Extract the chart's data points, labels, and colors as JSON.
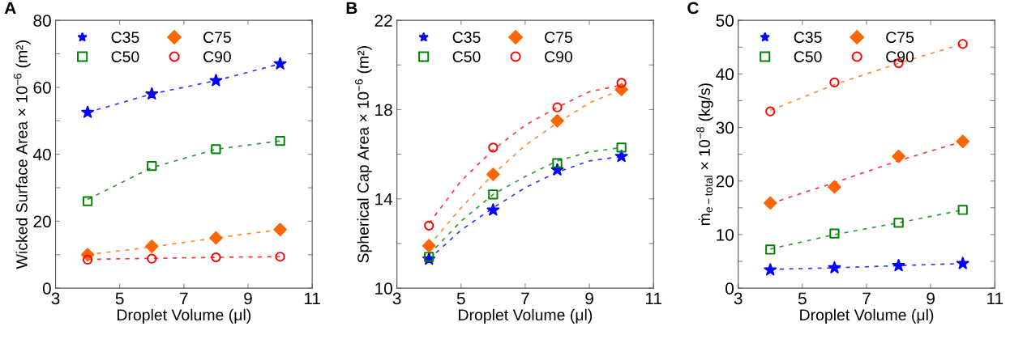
{
  "chart_data": [
    {
      "type": "scatter",
      "annotations": [
        "A"
      ],
      "xlabel": "Droplet Volume (μl)",
      "ylabel": "Wicked Surface Area × 10$^{−6}$ (m²)",
      "x": [
        4,
        6,
        8,
        10
      ],
      "xlim": [
        3,
        11
      ],
      "xticks": [
        3,
        5,
        7,
        9,
        11
      ],
      "ylim": [
        0,
        80
      ],
      "yticks": [
        0,
        {
          "value": 10,
          "label": null
        },
        20,
        {
          "value": 30,
          "label": null
        },
        40,
        {
          "value": 50,
          "label": null
        },
        60,
        {
          "value": 70,
          "label": null
        },
        80
      ],
      "grid": false,
      "legend": "top left",
      "series": [
        {
          "name": "C35",
          "color": "#0000ff",
          "marker": "star",
          "values": [
            52.5,
            58,
            62,
            67
          ]
        },
        {
          "name": "C50",
          "color": "#008000",
          "marker": "square",
          "values": [
            26,
            36.5,
            41.5,
            44
          ]
        },
        {
          "name": "C75",
          "color": "#ff6600",
          "marker": "diamond",
          "values": [
            10,
            12.5,
            15,
            17.5
          ]
        },
        {
          "name": "C90",
          "color": "#ff0000",
          "marker": "circle",
          "values": [
            8.5,
            8.8,
            9.2,
            9.4
          ]
        },
        {
          "type": "line",
          "line_style": "dashed",
          "color": "#3333ff",
          "x": [
            4,
            6,
            8,
            10
          ],
          "values": [
            52.5,
            58,
            62,
            67
          ]
        },
        {
          "type": "line",
          "line_style": "dashed",
          "color": "#339933",
          "x": [
            4,
            6,
            8,
            10
          ],
          "values": [
            26.5,
            36,
            41.5,
            44
          ]
        },
        {
          "type": "line",
          "line_style": "dashed",
          "color": "#ff8833",
          "x": [
            4,
            6,
            8,
            10
          ],
          "values": [
            10,
            12.3,
            15,
            17.5
          ]
        },
        {
          "type": "line",
          "line_style": "dashed",
          "color": "#ff3333",
          "x": [
            4,
            6,
            8,
            10
          ],
          "values": [
            8.6,
            8.9,
            9.2,
            9.4
          ]
        }
      ]
    },
    {
      "type": "scatter",
      "annotations": [
        "B"
      ],
      "xlabel": "Droplet Volume (μl)",
      "ylabel": "Spherical Cap Area × 10$^{−6}$ (m²)",
      "x": [
        4,
        6,
        8,
        10
      ],
      "xlim": [
        3,
        11
      ],
      "xticks": [
        3,
        5,
        7,
        9,
        11
      ],
      "ylim": [
        10,
        22
      ],
      "yticks": [
        10,
        {
          "value": 12,
          "label": null
        },
        14,
        {
          "value": 16,
          "label": null
        },
        18,
        {
          "value": 20,
          "label": null
        },
        22
      ],
      "grid": false,
      "legend": "top left",
      "series": [
        {
          "name": "C35",
          "color": "#0000ff",
          "marker": "star",
          "values": [
            11.3,
            13.5,
            15.3,
            15.9
          ]
        },
        {
          "name": "C50",
          "color": "#008000",
          "marker": "square",
          "values": [
            11.4,
            14.2,
            15.6,
            16.3
          ]
        },
        {
          "name": "C75",
          "color": "#ff6600",
          "marker": "diamond",
          "values": [
            11.9,
            15.1,
            17.5,
            18.9
          ]
        },
        {
          "name": "C90",
          "color": "#ff0000",
          "marker": "circle",
          "values": [
            12.8,
            16.3,
            18.1,
            19.2
          ]
        },
        {
          "type": "line",
          "line_style": "dashed",
          "color": "#3333ff",
          "x": [
            4,
            5,
            6,
            7,
            8,
            9,
            10
          ],
          "values": [
            11.3,
            12.6,
            13.6,
            14.5,
            15.2,
            15.7,
            15.9
          ]
        },
        {
          "type": "line",
          "line_style": "dashed",
          "color": "#339933",
          "x": [
            4,
            5,
            6,
            7,
            8,
            9,
            10
          ],
          "values": [
            11.5,
            13.0,
            14.2,
            15.0,
            15.7,
            16.1,
            16.3
          ]
        },
        {
          "type": "line",
          "line_style": "dashed",
          "color": "#ff8833",
          "x": [
            4,
            5,
            6,
            7,
            8,
            9,
            10
          ],
          "values": [
            11.9,
            13.6,
            15.1,
            16.4,
            17.4,
            18.3,
            18.9
          ]
        },
        {
          "type": "line",
          "line_style": "dashed",
          "color": "#ff3333",
          "x": [
            4,
            5,
            6,
            7,
            8,
            9,
            10
          ],
          "values": [
            12.9,
            14.8,
            16.2,
            17.3,
            18.1,
            18.8,
            19.1
          ]
        }
      ]
    },
    {
      "type": "scatter",
      "annotations": [
        "C"
      ],
      "xlabel": "Droplet Volume (μl)",
      "ylabel": "ṁ$_{e−total}$ × 10$^{−8}$ (kg/s)",
      "x": [
        4,
        6,
        8,
        10
      ],
      "xlim": [
        3,
        11
      ],
      "xticks": [
        3,
        5,
        7,
        9,
        11
      ],
      "ylim": [
        0,
        50
      ],
      "yticks": [
        0,
        {
          "value": 5,
          "label": null
        },
        10,
        {
          "value": 15,
          "label": null
        },
        20,
        {
          "value": 25,
          "label": null
        },
        30,
        {
          "value": 35,
          "label": null
        },
        40,
        {
          "value": 45,
          "label": null
        },
        50
      ],
      "grid": false,
      "legend": "top left",
      "series": [
        {
          "name": "C35",
          "color": "#0000ff",
          "marker": "star",
          "values": [
            3.4,
            3.8,
            4.2,
            4.6
          ]
        },
        {
          "name": "C50",
          "color": "#008000",
          "marker": "square",
          "values": [
            7.2,
            10.2,
            12.2,
            14.6
          ]
        },
        {
          "name": "C75",
          "color": "#ff6600",
          "marker": "diamond",
          "values": [
            15.9,
            18.9,
            24.6,
            27.4
          ]
        },
        {
          "name": "C90",
          "color": "#ff0000",
          "marker": "circle",
          "values": [
            33,
            38.4,
            42,
            45.6
          ]
        },
        {
          "type": "line",
          "line_style": "dashed",
          "color": "#3333ff",
          "x": [
            4,
            6,
            8,
            10
          ],
          "values": [
            3.5,
            3.8,
            4.2,
            4.6
          ]
        },
        {
          "type": "line",
          "line_style": "dashed",
          "color": "#339933",
          "x": [
            4,
            6,
            8,
            10
          ],
          "values": [
            7.3,
            10,
            12.2,
            14.6
          ]
        },
        {
          "type": "line",
          "line_style": "dashed",
          "color": "#ff3333",
          "x": [
            4,
            6,
            8,
            10
          ],
          "values": [
            15.8,
            19.7,
            23.8,
            27.4
          ]
        },
        {
          "type": "line",
          "line_style": "dashed",
          "color": "#ff8833",
          "x": [
            4,
            6,
            8,
            10
          ],
          "values": [
            33.2,
            38,
            42,
            45.6
          ]
        }
      ]
    }
  ]
}
